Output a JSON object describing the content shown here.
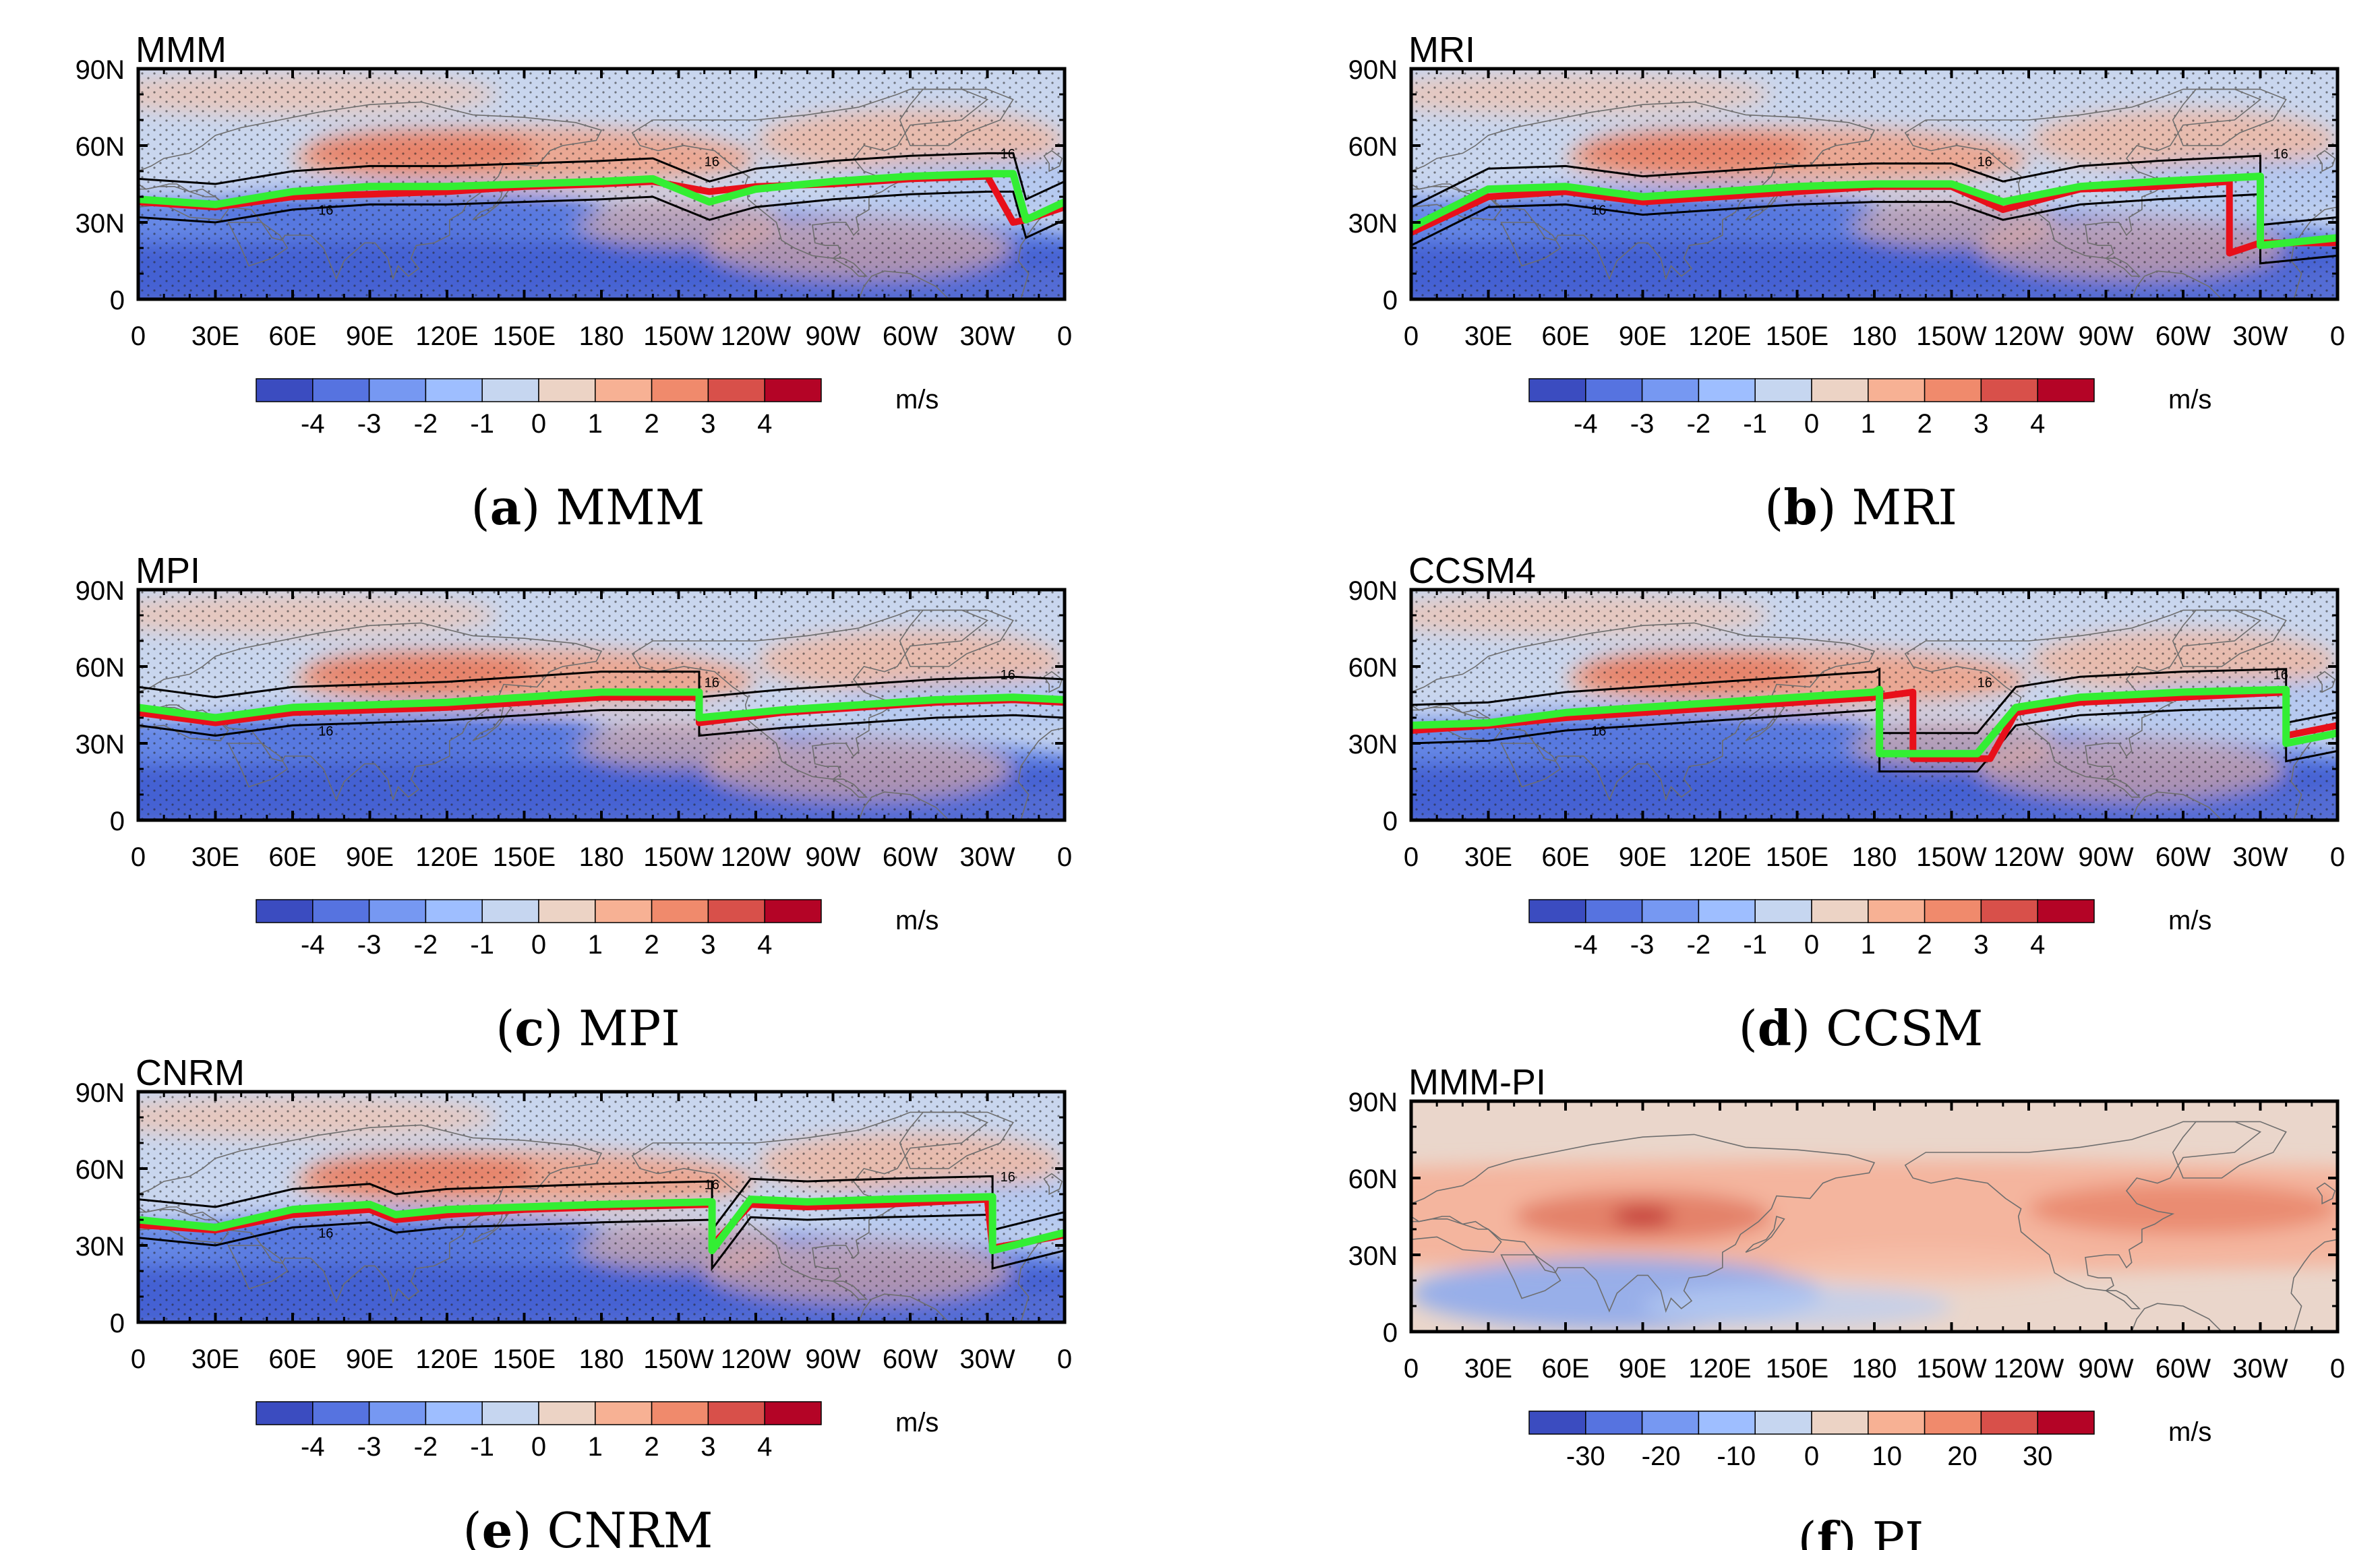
{
  "figure": {
    "colors": {
      "land": "#6e6e6e",
      "red_line": "#e8101a",
      "green_line": "#33ee33",
      "contour": "#000000"
    },
    "lat_ticks": [
      "0",
      "30N",
      "60N",
      "90N"
    ],
    "lon_ticks": [
      "0",
      "30E",
      "60E",
      "90E",
      "120E",
      "150E",
      "180",
      "150W",
      "120W",
      "90W",
      "60W",
      "30W",
      "0"
    ],
    "unit": "m/s",
    "colorbar_anomaly": {
      "labels": [
        "-4",
        "-3",
        "-2",
        "-1",
        "0",
        "1",
        "2",
        "3",
        "4"
      ],
      "colors": [
        "#3b4cc0",
        "#5673e0",
        "#7698f2",
        "#9ebeff",
        "#c6d6f0",
        "#ecd3c5",
        "#f7b194",
        "#f08a6c",
        "#d8504a",
        "#b40426"
      ]
    },
    "colorbar_pi": {
      "labels": [
        "-30",
        "-20",
        "-10",
        "0",
        "10",
        "20",
        "30"
      ],
      "colors": [
        "#3b4cc0",
        "#5673e0",
        "#7698f2",
        "#9ebeff",
        "#c6d6f0",
        "#ecd3c5",
        "#f7b194",
        "#f08a6c",
        "#d8504a",
        "#b40426"
      ]
    }
  },
  "panels": [
    {
      "id": "a",
      "title": "MMM",
      "caption_letter": "(a)",
      "caption_text": " MMM",
      "contour_label": "16",
      "colorbar": "anomaly"
    },
    {
      "id": "b",
      "title": "MRI",
      "caption_letter": "(b)",
      "caption_text": " MRI",
      "contour_label": "16",
      "colorbar": "anomaly"
    },
    {
      "id": "c",
      "title": "MPI",
      "caption_letter": "(c)",
      "caption_text": " MPI",
      "contour_label": "16",
      "colorbar": "anomaly"
    },
    {
      "id": "d",
      "title": "CCSM4",
      "caption_letter": "(d)",
      "caption_text": " CCSM",
      "contour_label": "16",
      "colorbar": "anomaly"
    },
    {
      "id": "e",
      "title": "CNRM",
      "caption_letter": "(e)",
      "caption_text": " CNRM",
      "contour_label": "16",
      "colorbar": "anomaly"
    },
    {
      "id": "f",
      "title": "MMM-PI",
      "caption_letter": "(f)",
      "caption_text": " PI",
      "contour_label": "",
      "colorbar": "pi"
    }
  ],
  "chart_data": [
    {
      "type": "heatmap",
      "title": "MMM",
      "xlabel": "",
      "ylabel": "",
      "x_ticks": [
        "0",
        "30E",
        "60E",
        "90E",
        "120E",
        "150E",
        "180",
        "150W",
        "120W",
        "90W",
        "60W",
        "30W",
        "0"
      ],
      "y_ticks": [
        "0",
        "30N",
        "60N",
        "90N"
      ],
      "xlim": [
        0,
        360
      ],
      "ylim": [
        0,
        90
      ],
      "colorbar": {
        "min": -4,
        "max": 4,
        "ticks": [
          -4,
          -3,
          -2,
          -1,
          0,
          1,
          2,
          3,
          4
        ],
        "unit": "m/s"
      },
      "series": [
        {
          "name": "jet axis (red)",
          "lon": [
            0,
            30,
            60,
            90,
            120,
            150,
            180,
            200,
            222,
            240,
            270,
            300,
            330,
            340,
            345,
            360
          ],
          "lat": [
            38,
            36,
            40,
            41,
            42,
            44,
            45,
            46,
            42,
            44,
            45,
            47,
            48,
            30,
            31,
            36
          ]
        },
        {
          "name": "jet axis (green)",
          "lon": [
            0,
            30,
            60,
            90,
            120,
            150,
            180,
            200,
            222,
            240,
            270,
            300,
            330,
            340,
            345,
            360
          ],
          "lat": [
            39,
            37,
            42,
            44,
            44,
            45,
            46,
            47,
            38,
            43,
            46,
            48,
            49,
            49,
            31,
            38
          ]
        }
      ],
      "contour_value": 16
    },
    {
      "type": "heatmap",
      "title": "MRI",
      "x_ticks": [
        "0",
        "30E",
        "60E",
        "90E",
        "120E",
        "150E",
        "180",
        "150W",
        "120W",
        "90W",
        "60W",
        "30W",
        "0"
      ],
      "y_ticks": [
        "0",
        "30N",
        "60N",
        "90N"
      ],
      "xlim": [
        0,
        360
      ],
      "ylim": [
        0,
        90
      ],
      "colorbar": {
        "min": -4,
        "max": 4,
        "ticks": [
          -4,
          -3,
          -2,
          -1,
          0,
          1,
          2,
          3,
          4
        ],
        "unit": "m/s"
      },
      "series": [
        {
          "name": "jet axis (red)",
          "lon": [
            0,
            30,
            60,
            90,
            120,
            150,
            180,
            210,
            230,
            260,
            290,
            318,
            318,
            330,
            360
          ],
          "lat": [
            26,
            40,
            42,
            38,
            40,
            42,
            44,
            44,
            35,
            43,
            44,
            46,
            18,
            22,
            22
          ]
        },
        {
          "name": "jet axis (green)",
          "lon": [
            0,
            30,
            60,
            90,
            120,
            150,
            180,
            210,
            230,
            260,
            290,
            330,
            330,
            360
          ],
          "lat": [
            28,
            43,
            44,
            40,
            42,
            44,
            45,
            45,
            38,
            44,
            46,
            48,
            21,
            24
          ]
        }
      ],
      "contour_value": 16
    },
    {
      "type": "heatmap",
      "title": "MPI",
      "x_ticks": [
        "0",
        "30E",
        "60E",
        "90E",
        "120E",
        "150E",
        "180",
        "150W",
        "120W",
        "90W",
        "60W",
        "30W",
        "0"
      ],
      "y_ticks": [
        "0",
        "30N",
        "60N",
        "90N"
      ],
      "xlim": [
        0,
        360
      ],
      "ylim": [
        0,
        90
      ],
      "colorbar": {
        "min": -4,
        "max": 4,
        "ticks": [
          -4,
          -3,
          -2,
          -1,
          0,
          1,
          2,
          3,
          4
        ],
        "unit": "m/s"
      },
      "series": [
        {
          "name": "jet axis (red)",
          "lon": [
            0,
            30,
            60,
            90,
            120,
            150,
            180,
            218,
            218,
            250,
            280,
            310,
            340,
            360
          ],
          "lat": [
            42,
            38,
            42,
            43,
            44,
            46,
            48,
            48,
            38,
            42,
            44,
            46,
            47,
            46
          ]
        },
        {
          "name": "jet axis (green)",
          "lon": [
            0,
            30,
            60,
            90,
            120,
            150,
            180,
            218,
            218,
            250,
            280,
            310,
            340,
            360
          ],
          "lat": [
            44,
            40,
            44,
            45,
            46,
            48,
            50,
            50,
            40,
            43,
            45,
            47,
            48,
            47
          ]
        }
      ],
      "contour_value": 16
    },
    {
      "type": "heatmap",
      "title": "CCSM4",
      "x_ticks": [
        "0",
        "30E",
        "60E",
        "90E",
        "120E",
        "150E",
        "180",
        "150W",
        "120W",
        "90W",
        "60W",
        "30W",
        "0"
      ],
      "y_ticks": [
        "0",
        "30N",
        "60N",
        "90N"
      ],
      "xlim": [
        0,
        360
      ],
      "ylim": [
        0,
        90
      ],
      "colorbar": {
        "min": -4,
        "max": 4,
        "ticks": [
          -4,
          -3,
          -2,
          -1,
          0,
          1,
          2,
          3,
          4
        ],
        "unit": "m/s"
      },
      "series": [
        {
          "name": "jet axis (red)",
          "lon": [
            0,
            30,
            60,
            90,
            120,
            150,
            180,
            195,
            195,
            225,
            235,
            260,
            300,
            340,
            340,
            360
          ],
          "lat": [
            35,
            37,
            40,
            42,
            44,
            46,
            48,
            50,
            24,
            24,
            42,
            46,
            48,
            50,
            33,
            37
          ]
        },
        {
          "name": "jet axis (green)",
          "lon": [
            0,
            30,
            60,
            90,
            120,
            150,
            180,
            182,
            182,
            220,
            235,
            260,
            300,
            340,
            340,
            360
          ],
          "lat": [
            37,
            38,
            42,
            44,
            46,
            48,
            50,
            51,
            26,
            26,
            44,
            48,
            50,
            51,
            30,
            34
          ]
        }
      ],
      "contour_value": 16
    },
    {
      "type": "heatmap",
      "title": "CNRM",
      "x_ticks": [
        "0",
        "30E",
        "60E",
        "90E",
        "120E",
        "150E",
        "180",
        "150W",
        "120W",
        "90W",
        "60W",
        "30W",
        "0"
      ],
      "y_ticks": [
        "0",
        "30N",
        "60N",
        "90N"
      ],
      "xlim": [
        0,
        360
      ],
      "ylim": [
        0,
        90
      ],
      "colorbar": {
        "min": -4,
        "max": 4,
        "ticks": [
          -4,
          -3,
          -2,
          -1,
          0,
          1,
          2,
          3,
          4
        ],
        "unit": "m/s"
      },
      "series": [
        {
          "name": "jet axis (red)",
          "lon": [
            0,
            30,
            60,
            90,
            100,
            120,
            150,
            180,
            223,
            223,
            238,
            260,
            290,
            330,
            332,
            360
          ],
          "lat": [
            38,
            36,
            42,
            44,
            40,
            42,
            44,
            45,
            46,
            30,
            46,
            45,
            46,
            48,
            29,
            34
          ]
        },
        {
          "name": "jet axis (green)",
          "lon": [
            0,
            30,
            60,
            90,
            100,
            120,
            150,
            180,
            223,
            223,
            238,
            260,
            290,
            332,
            332,
            360
          ],
          "lat": [
            40,
            37,
            44,
            46,
            42,
            44,
            45,
            46,
            47,
            28,
            48,
            47,
            48,
            49,
            28,
            35
          ]
        }
      ],
      "contour_value": 16
    },
    {
      "type": "heatmap",
      "title": "MMM-PI",
      "x_ticks": [
        "0",
        "30E",
        "60E",
        "90E",
        "120E",
        "150E",
        "180",
        "150W",
        "120W",
        "90W",
        "60W",
        "30W",
        "0"
      ],
      "y_ticks": [
        "0",
        "30N",
        "60N",
        "90N"
      ],
      "xlim": [
        0,
        360
      ],
      "ylim": [
        0,
        90
      ],
      "colorbar": {
        "min": -30,
        "max": 30,
        "ticks": [
          -30,
          -20,
          -10,
          0,
          10,
          20,
          30
        ],
        "unit": "m/s"
      },
      "series": []
    }
  ]
}
